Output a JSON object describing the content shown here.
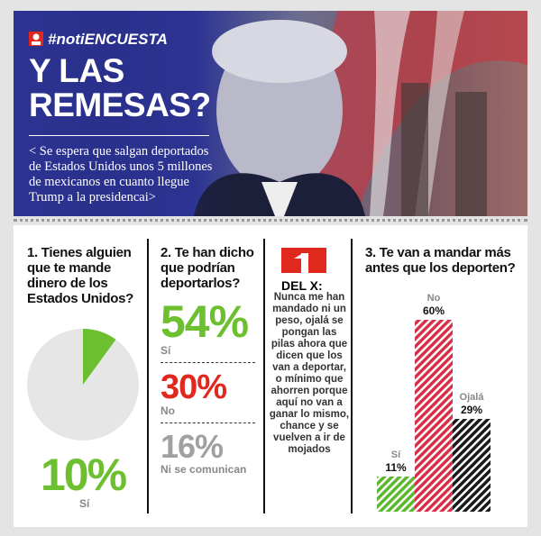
{
  "header": {
    "hashtag": "#notiENCUESTA",
    "title": "Y LAS REMESAS?",
    "quote": "< Se espera que salgan deportados de Estados Unidos unos 5 millones de mexicanos en cuanto llegue Trump a la presidencai>"
  },
  "q1": {
    "question": "1. Tienes alguien que te mande dinero de los Estados Unidos?",
    "value": 10,
    "label": "10%",
    "answer": "Sí",
    "color": "#6cbf2e"
  },
  "q2": {
    "question": "2. Te han dicho que podrían deportarlos?",
    "answers": [
      {
        "value": 54,
        "label": "54%",
        "text": "Sí",
        "color": "#6cbf2e"
      },
      {
        "value": 30,
        "label": "30%",
        "text": "No",
        "color": "#e0281e"
      },
      {
        "value": 16,
        "label": "16%",
        "text": "Ni se comunican",
        "color": "#a0a0a0"
      }
    ]
  },
  "comment": {
    "title": "DEL X:",
    "text": "Nunca me han mandado ni un peso, ojalá se pongan las pilas ahora que dicen que los van a deportar, o mínimo que ahorren porque aquí no van a ganar lo mismo, chance y se vuelven a ir de mojados"
  },
  "q3": {
    "question": "3. Te van a mandar más antes que los deporten?",
    "bars": [
      {
        "name": "Sí",
        "value": 11,
        "label": "11%",
        "color": "#5cb82e"
      },
      {
        "name": "No",
        "value": 60,
        "label": "60%",
        "color": "#d8304a"
      },
      {
        "name": "Ojalá",
        "value": 29,
        "label": "29%",
        "color": "#1a1a1a"
      }
    ]
  }
}
